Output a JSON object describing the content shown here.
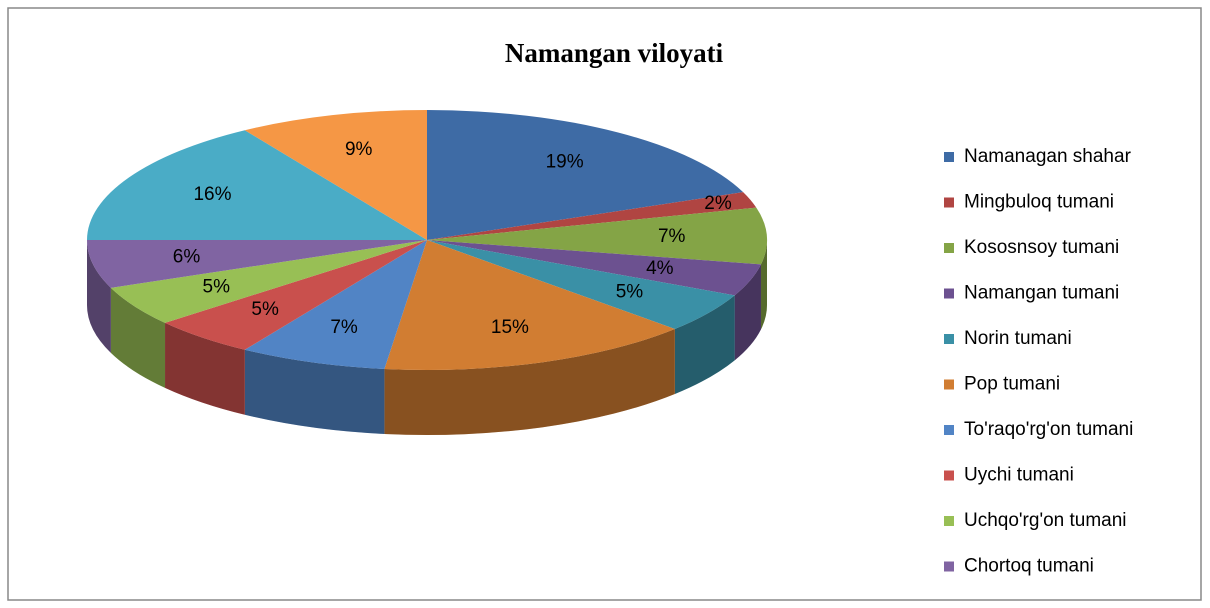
{
  "chart_data": {
    "type": "pie3d",
    "title": "Namangan viloyati",
    "categories": [
      "Namanagan shahar",
      "Mingbuloq tumani",
      "Kososnsoy tumani",
      "Namangan tumani",
      "Norin tumani",
      "Pop tumani",
      "To'raqo'rg'on tumani",
      "Uychi tumani",
      "Uchqo'rg'on tumani",
      "Chortoq tumani",
      null,
      null
    ],
    "values": [
      19,
      2,
      7,
      4,
      5,
      15,
      7,
      5,
      5,
      6,
      16,
      9
    ],
    "value_labels": [
      "19%",
      "2%",
      "7%",
      "4%",
      "5%",
      "15%",
      "7%",
      "5%",
      "5%",
      "6%",
      "16%",
      "9%"
    ],
    "colors": [
      "#3e6ba5",
      "#b04542",
      "#84a446",
      "#6c5190",
      "#3a90a6",
      "#d17d32",
      "#5184c5",
      "#c9504d",
      "#98bf55",
      "#8064a2",
      "#4aacc6",
      "#f59745"
    ],
    "legend": "right"
  }
}
